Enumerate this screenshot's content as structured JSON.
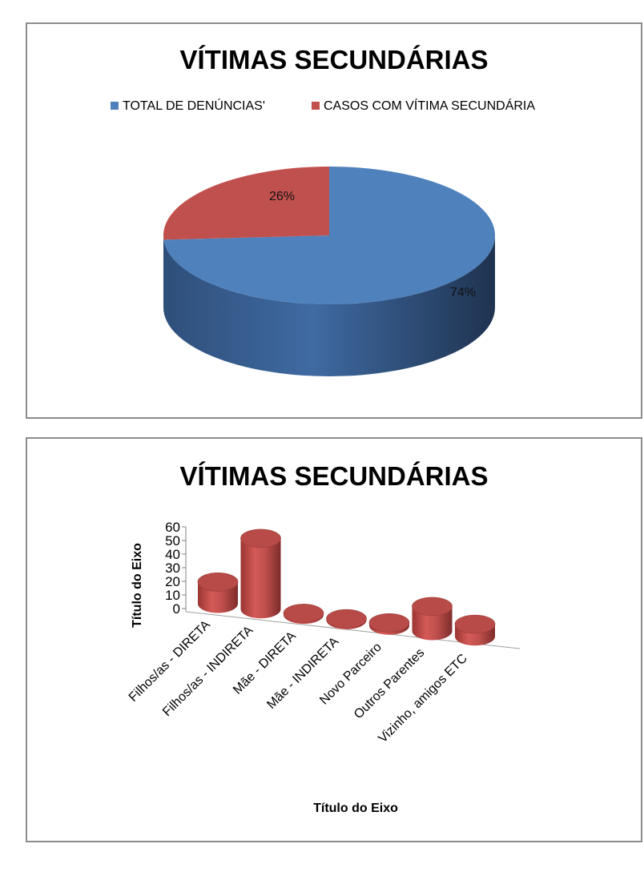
{
  "chart_data": [
    {
      "type": "pie",
      "title": "VÍTIMAS SECUNDÁRIAS",
      "legend_position": "top",
      "three_d": true,
      "categories": [
        "TOTAL DE DENÚNCIAS'",
        "CASOS COM VÍTIMA SECUNDÁRIA"
      ],
      "values": [
        74,
        26
      ],
      "labels": [
        "74%",
        "26%"
      ],
      "colors": [
        "#4f81bd",
        "#c0504d"
      ]
    },
    {
      "type": "bar",
      "title": "VÍTIMAS SECUNDÁRIAS",
      "three_d": true,
      "bar_shape": "cylinder",
      "categories": [
        "Filhos/as - DIRETA",
        "Filhos/as - INDIRETA",
        "Mãe - DIRETA",
        "Mãe - INDIRETA",
        "Novo Parceiro",
        "Outros Parentes",
        "Vizinho, amigos ETC"
      ],
      "values": [
        16,
        52,
        1,
        1,
        2,
        18,
        9
      ],
      "xlabel": "Título do Eixo",
      "ylabel": "Título do Eixo",
      "ylim": [
        0,
        60
      ],
      "yticks": [
        0,
        10,
        20,
        30,
        40,
        50,
        60
      ],
      "color": "#c0504d",
      "grid": false
    }
  ]
}
